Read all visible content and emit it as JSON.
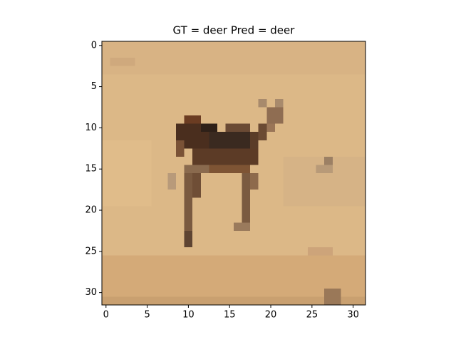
{
  "chart_data": {
    "type": "image",
    "title": "GT = deer Pred = deer",
    "xlim": [
      -0.5,
      31.5
    ],
    "ylim": [
      31.5,
      -0.5
    ],
    "xticks": [
      0,
      5,
      10,
      15,
      20,
      25,
      30
    ],
    "yticks": [
      0,
      5,
      10,
      15,
      20,
      25,
      30
    ]
  }
}
